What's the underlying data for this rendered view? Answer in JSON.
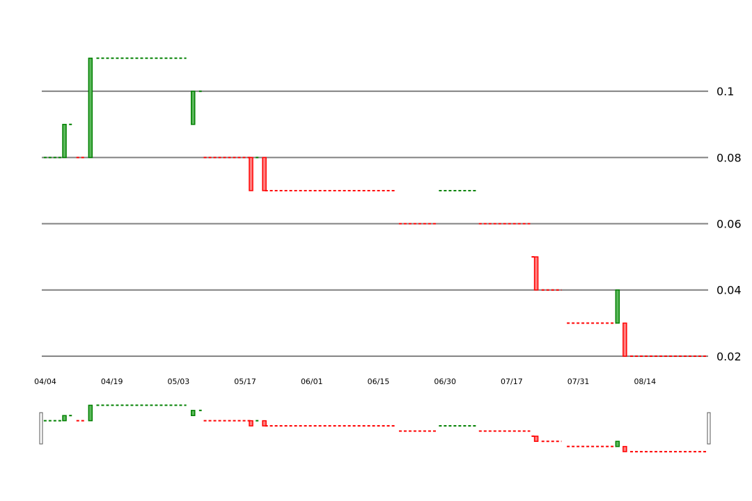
{
  "chart_data": {
    "type": "candlestick",
    "y_axis": {
      "ticks": [
        0.02,
        0.04,
        0.06,
        0.08,
        0.1
      ],
      "tick_labels": [
        "0.02",
        "0.04",
        "0.06",
        "0.08",
        "0.1"
      ],
      "range": [
        0.012,
        0.12
      ],
      "grid": true,
      "side": "right"
    },
    "x_axis": {
      "range": [
        0,
        100
      ],
      "tick_positions": [
        0,
        10,
        20,
        30,
        40,
        50,
        60,
        70,
        80,
        90
      ],
      "tick_labels": [
        "04/04",
        "04/19",
        "05/03",
        "05/17",
        "06/01",
        "06/15",
        "06/30",
        "07/17",
        "07/31",
        "08/14"
      ]
    },
    "colors": {
      "up": "#008000",
      "up_fill": "#5cb85c",
      "down": "#ff0000",
      "down_fill": "#ff8080",
      "grid": "#808080"
    },
    "flat_segments": [
      {
        "x0": 0.3,
        "x1": 3.2,
        "y": 0.08,
        "dir": "up"
      },
      {
        "x0": 4.1,
        "x1": 4.8,
        "y": 0.09,
        "dir": "up"
      },
      {
        "x0": 5.2,
        "x1": 6.6,
        "y": 0.08,
        "dir": "down"
      },
      {
        "x0": 8.2,
        "x1": 21.7,
        "y": 0.11,
        "dir": "up"
      },
      {
        "x0": 23.6,
        "x1": 24.0,
        "y": 0.1,
        "dir": "up"
      },
      {
        "x0": 24.3,
        "x1": 31.3,
        "y": 0.08,
        "dir": "down"
      },
      {
        "x0": 32.1,
        "x1": 32.6,
        "y": 0.08,
        "dir": "up"
      },
      {
        "x0": 33.5,
        "x1": 53.0,
        "y": 0.07,
        "dir": "down"
      },
      {
        "x0": 53.6,
        "x1": 59.3,
        "y": 0.06,
        "dir": "down"
      },
      {
        "x0": 59.6,
        "x1": 65.2,
        "y": 0.07,
        "dir": "up"
      },
      {
        "x0": 65.6,
        "x1": 73.3,
        "y": 0.06,
        "dir": "down"
      },
      {
        "x0": 73.5,
        "x1": 74.0,
        "y": 0.05,
        "dir": "down"
      },
      {
        "x0": 75.0,
        "x1": 78.0,
        "y": 0.04,
        "dir": "down"
      },
      {
        "x0": 78.8,
        "x1": 86.2,
        "y": 0.03,
        "dir": "down"
      },
      {
        "x0": 88.3,
        "x1": 100.0,
        "y": 0.02,
        "dir": "down"
      }
    ],
    "candles": [
      {
        "x": 3.4,
        "open": 0.08,
        "close": 0.09
      },
      {
        "x": 7.3,
        "open": 0.08,
        "close": 0.11
      },
      {
        "x": 22.7,
        "open": 0.09,
        "close": 0.1
      },
      {
        "x": 31.4,
        "open": 0.08,
        "close": 0.07
      },
      {
        "x": 33.4,
        "open": 0.08,
        "close": 0.07
      },
      {
        "x": 74.2,
        "open": 0.05,
        "close": 0.04
      },
      {
        "x": 86.4,
        "open": 0.03,
        "close": 0.04
      },
      {
        "x": 87.5,
        "open": 0.03,
        "close": 0.02
      }
    ],
    "navigator": {
      "handles": [
        "left",
        "right"
      ]
    }
  }
}
